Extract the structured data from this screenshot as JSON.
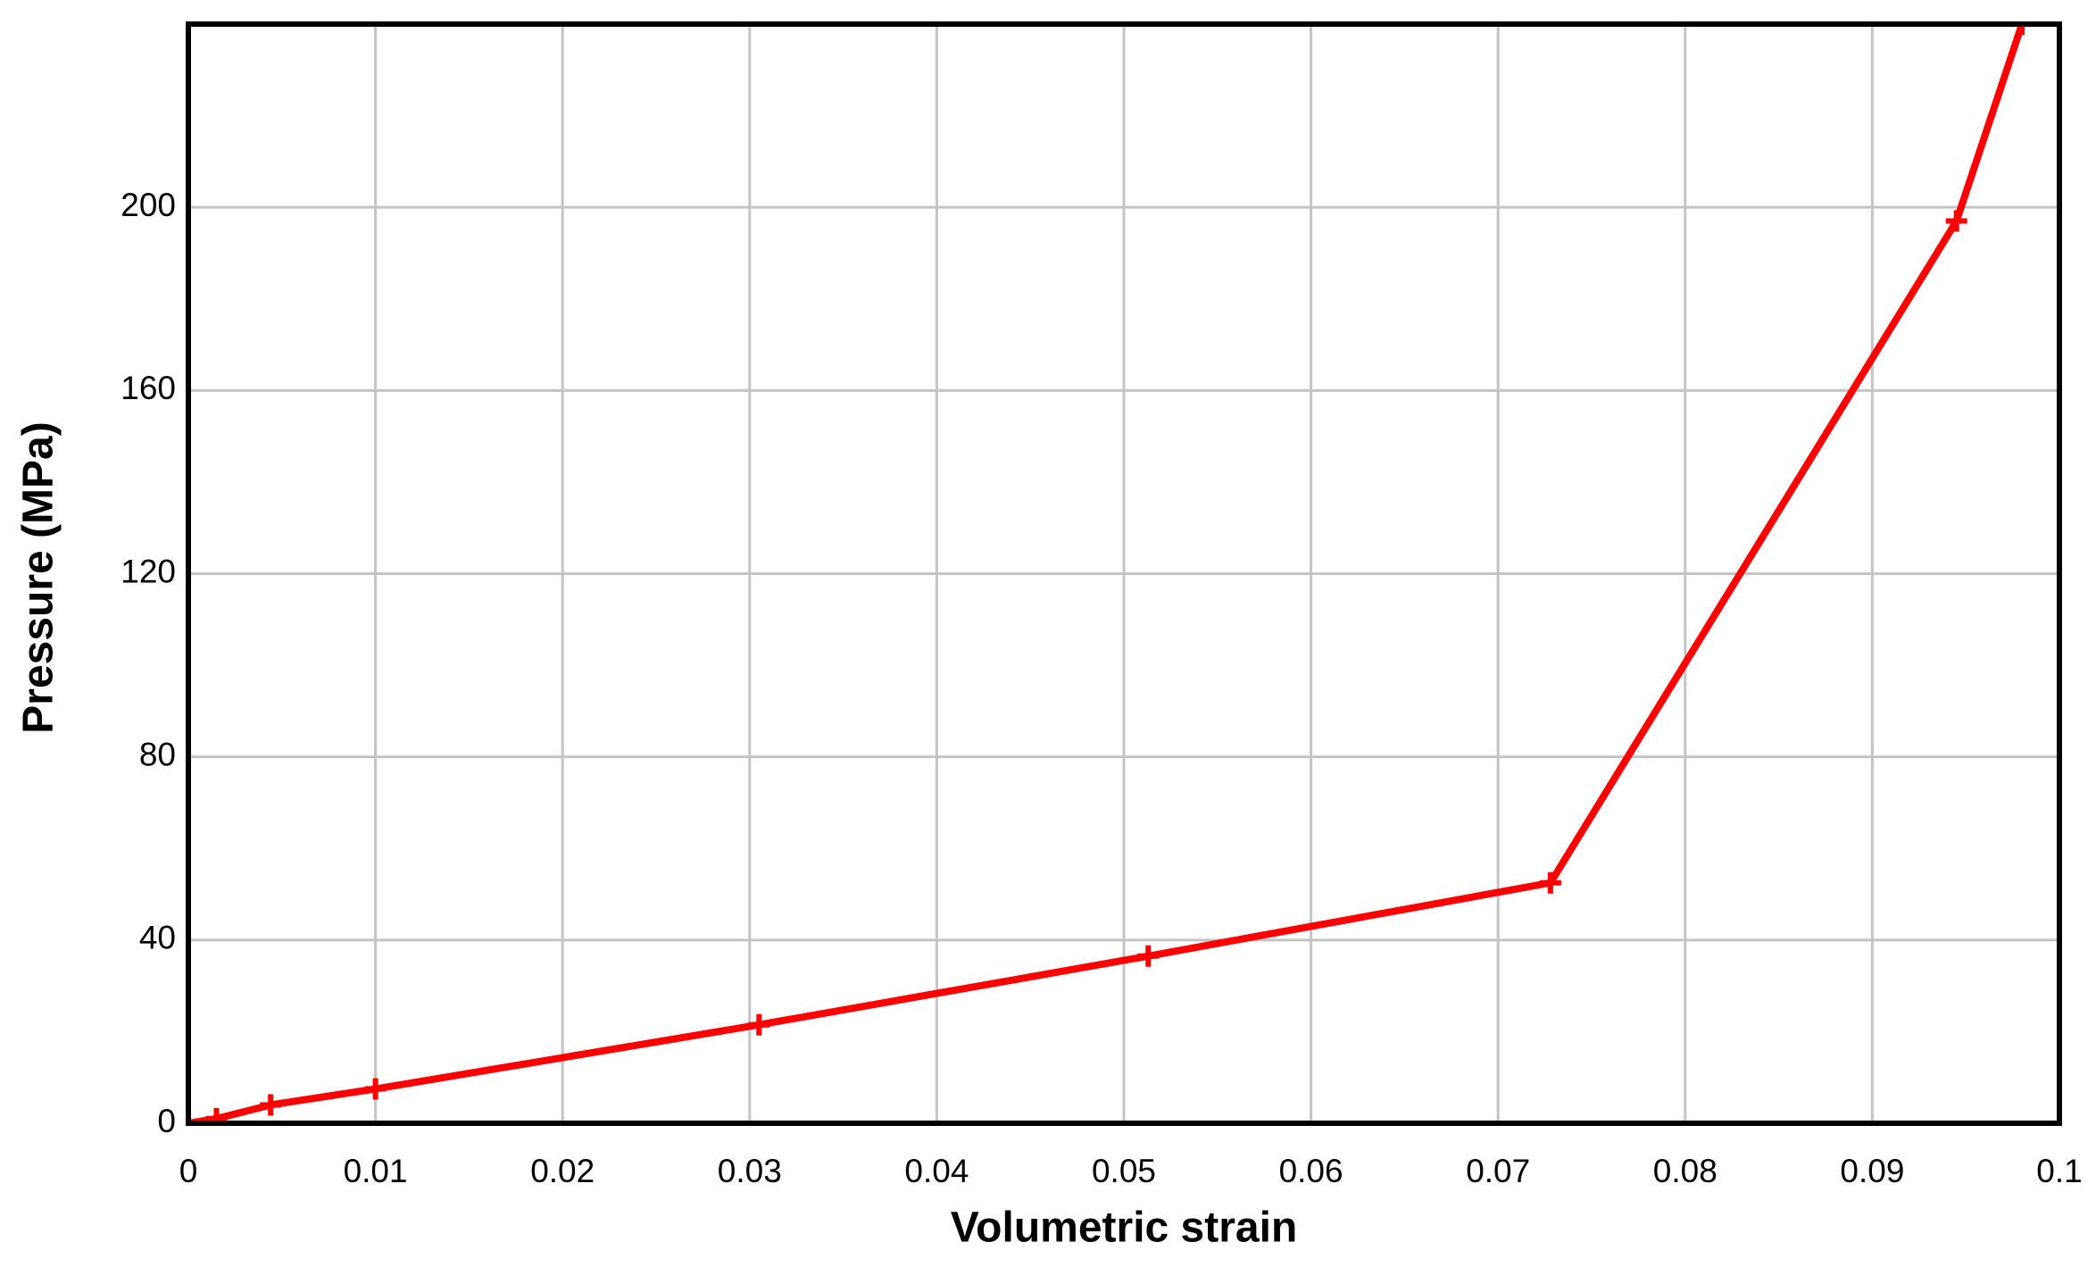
{
  "chart_data": {
    "type": "line",
    "x_label": "Volumetric strain",
    "y_label": "Pressure (MPa)",
    "x": [
      0,
      0.0015,
      0.0044,
      0.01,
      0.0305,
      0.0513,
      0.0728,
      0.0945,
      0.098
    ],
    "values": [
      0,
      1,
      4,
      7.5,
      21.5,
      36.5,
      52.5,
      197,
      240
    ],
    "color": "#ff0000",
    "xlim": [
      0,
      0.1
    ],
    "xticks": [
      0,
      0.01,
      0.02,
      0.03,
      0.04,
      0.05,
      0.06,
      0.07,
      0.08,
      0.09,
      0.1
    ],
    "ylim": [
      0,
      240
    ],
    "yticks": [
      0,
      40,
      80,
      120,
      160,
      200
    ],
    "grid": true
  }
}
